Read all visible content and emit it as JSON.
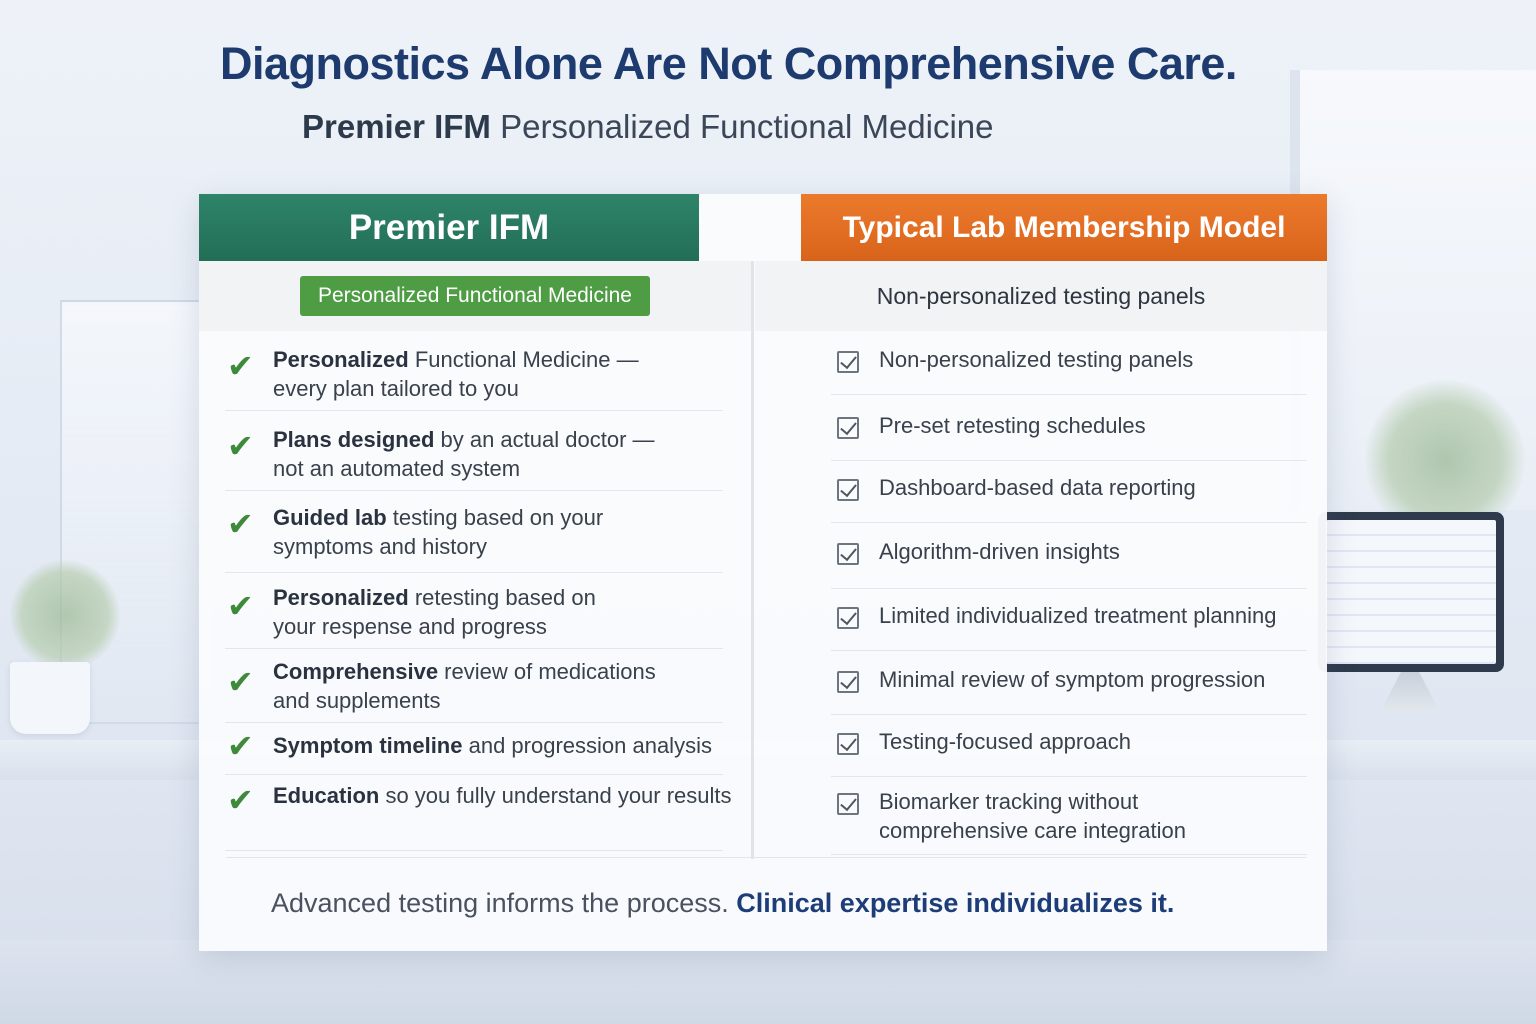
{
  "header": {
    "title": "Diagnostics Alone Are Not Comprehensive Care.",
    "subtitle_brand": "Premier IFM",
    "subtitle_rest": "Personalized Functional Medicine"
  },
  "left_column": {
    "title": "Premier IFM",
    "badge": "Personalized Functional Medicine",
    "icon": "checkmark-icon",
    "items": [
      {
        "bold": "Personalized",
        "rest": " Functional Medicine —",
        "line2": "every plan tailored to you"
      },
      {
        "bold": "Plans designed",
        "rest": " by an actual doctor —",
        "line2": "not an automated system"
      },
      {
        "bold": "Guided lab",
        "rest": " testing based on your",
        "line2": "symptoms and history"
      },
      {
        "bold": "Personalized",
        "rest": " retesting based on",
        "line2": "your respense and progress"
      },
      {
        "bold": "Comprehensive",
        "rest": " review of medications",
        "line2": "and supplements"
      },
      {
        "bold": "Symptom timeline",
        "rest": " and progression analysis",
        "line2": ""
      },
      {
        "bold": "Education",
        "rest": " so you fully understand your results",
        "line2": ""
      }
    ]
  },
  "right_column": {
    "title": "Typical Lab Membership Model",
    "subtitle": "Non-personalized testing panels",
    "icon": "checkbox-icon",
    "items": [
      {
        "line1": "Non-personalized testing panels",
        "line2": ""
      },
      {
        "line1": "Pre-set retesting schedules",
        "line2": ""
      },
      {
        "line1": "Dashboard-based data reporting",
        "line2": ""
      },
      {
        "line1": "Algorithm-driven insights",
        "line2": ""
      },
      {
        "line1": "Limited individualized treatment planning",
        "line2": ""
      },
      {
        "line1": "Minimal review of symptom progression",
        "line2": ""
      },
      {
        "line1": "Testing-focused approach",
        "line2": ""
      },
      {
        "line1": "Biomarker tracking without",
        "line2": "comprehensive care integration"
      }
    ]
  },
  "footer": {
    "tagline_plain": "Advanced testing informs the process. ",
    "tagline_bold": "Clinical expertise individualizes it."
  },
  "colors": {
    "title_navy": "#1d3b6e",
    "left_header_green": "#2e8468",
    "badge_green": "#4e9c43",
    "right_header_orange": "#ec7a2c",
    "check_green": "#3f8a3a"
  }
}
